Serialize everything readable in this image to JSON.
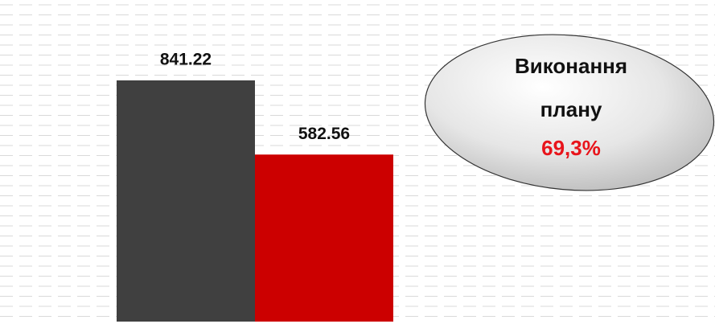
{
  "chart_data": {
    "type": "bar",
    "categories": [
      null,
      null
    ],
    "values": [
      841.22,
      582.56
    ],
    "colors": [
      "#404040",
      "#cc0000"
    ],
    "annotation": {
      "lines": [
        "Виконання",
        "плану"
      ],
      "value": "69,3%",
      "value_color": "#e8141b"
    }
  }
}
